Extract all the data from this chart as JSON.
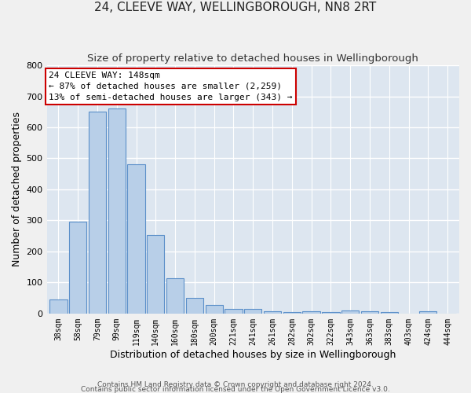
{
  "title": "24, CLEEVE WAY, WELLINGBOROUGH, NN8 2RT",
  "subtitle": "Size of property relative to detached houses in Wellingborough",
  "xlabel": "Distribution of detached houses by size in Wellingborough",
  "ylabel": "Number of detached properties",
  "categories": [
    "38sqm",
    "58sqm",
    "79sqm",
    "99sqm",
    "119sqm",
    "140sqm",
    "160sqm",
    "180sqm",
    "200sqm",
    "221sqm",
    "241sqm",
    "261sqm",
    "282sqm",
    "302sqm",
    "322sqm",
    "343sqm",
    "363sqm",
    "383sqm",
    "403sqm",
    "424sqm",
    "444sqm"
  ],
  "values": [
    45,
    295,
    650,
    660,
    480,
    253,
    113,
    50,
    28,
    16,
    15,
    8,
    5,
    7,
    5,
    10,
    7,
    5,
    0,
    7,
    0
  ],
  "bar_color": "#b8cfe8",
  "bar_edge_color": "#5b8fc9",
  "annotation_line1": "24 CLEEVE WAY: 148sqm",
  "annotation_line2": "← 87% of detached houses are smaller (2,259)",
  "annotation_line3": "13% of semi-detached houses are larger (343) →",
  "annotation_box_facecolor": "#ffffff",
  "annotation_box_edgecolor": "#cc0000",
  "ylim_max": 800,
  "yticks": [
    0,
    100,
    200,
    300,
    400,
    500,
    600,
    700,
    800
  ],
  "plot_bg_color": "#dde6f0",
  "fig_bg_color": "#f0f0f0",
  "grid_color": "#ffffff",
  "footer_line1": "Contains HM Land Registry data © Crown copyright and database right 2024.",
  "footer_line2": "Contains public sector information licensed under the Open Government Licence v3.0.",
  "title_fontsize": 11,
  "subtitle_fontsize": 9.5,
  "xlabel_fontsize": 9,
  "ylabel_fontsize": 9,
  "tick_fontsize": 8,
  "xtick_fontsize": 7,
  "annot_fontsize": 8,
  "footer_fontsize": 6.5
}
